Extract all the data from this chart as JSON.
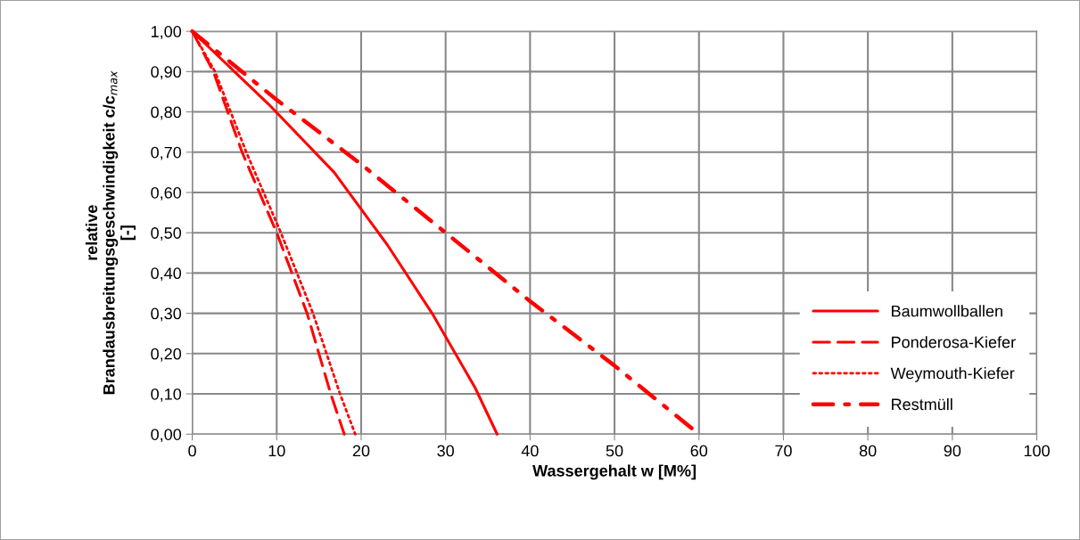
{
  "chart_data": {
    "type": "line",
    "xlabel": "Wassergehalt w [M%]",
    "ylabel": "relative\nBrandausbreitungsgeschwindigkeit c/c$_{max}$\n[-]",
    "xlim": [
      0,
      100
    ],
    "xticks": [
      0,
      10,
      20,
      30,
      40,
      50,
      60,
      70,
      80,
      90,
      100
    ],
    "ylim": [
      0,
      1
    ],
    "yticks": [
      {
        "value": 0,
        "label": "0,00"
      },
      {
        "value": 0.1,
        "label": "0,10"
      },
      {
        "value": 0.2,
        "label": "0,20"
      },
      {
        "value": 0.3,
        "label": "0,30"
      },
      {
        "value": 0.4,
        "label": "0,40"
      },
      {
        "value": 0.5,
        "label": "0,50"
      },
      {
        "value": 0.6,
        "label": "0,60"
      },
      {
        "value": 0.7,
        "label": "0,70"
      },
      {
        "value": 0.8,
        "label": "0,80"
      },
      {
        "value": 0.9,
        "label": "0,90"
      },
      {
        "value": 1,
        "label": "1,00"
      }
    ],
    "grid": true,
    "legend": "bottom right",
    "marker": "none",
    "series": [
      {
        "name": "Baumwollballen",
        "color": "#ff0000",
        "line_style": "solid",
        "x": [
          0,
          9,
          16.8,
          23.1,
          28.4,
          33.5,
          36.1
        ],
        "values": [
          1,
          0.82,
          0.65,
          0.47,
          0.3,
          0.115,
          0
        ]
      },
      {
        "name": "Ponderosa-Kiefer",
        "color": "#ff0000",
        "line_style": "dashed",
        "x": [
          0,
          2.5,
          5.9,
          10,
          13.6,
          16.4,
          18
        ],
        "values": [
          1,
          0.9,
          0.7,
          0.5,
          0.3,
          0.1,
          0
        ]
      },
      {
        "name": "Weymouth-Kiefer",
        "color": "#ff0000",
        "line_style": "dotted",
        "x": [
          0,
          2.7,
          6.4,
          10.5,
          14.3,
          17.5,
          19.3
        ],
        "values": [
          1,
          0.9,
          0.7,
          0.5,
          0.3,
          0.1,
          0
        ]
      },
      {
        "name": "Restmüll",
        "color": "#ff0000",
        "line_style": "dashdot",
        "x": [
          0,
          10,
          20,
          30,
          40,
          50,
          60
        ],
        "values": [
          1,
          0.83,
          0.67,
          0.5,
          0.33,
          0.17,
          0
        ]
      }
    ]
  }
}
